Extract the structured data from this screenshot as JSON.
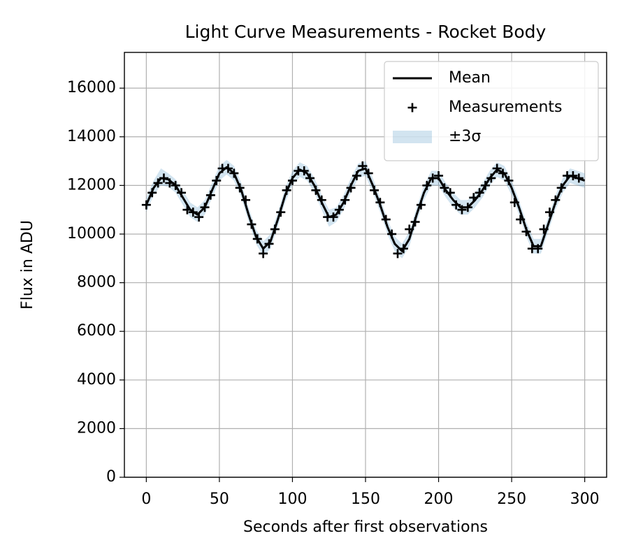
{
  "chart_data": {
    "type": "line",
    "title": "Light Curve Measurements - Rocket Body",
    "xlabel": "Seconds after first observations",
    "ylabel": "Flux in ADU",
    "xlim": [
      -15,
      315
    ],
    "ylim": [
      0,
      17470
    ],
    "xticks": [
      0,
      50,
      100,
      150,
      200,
      250,
      300
    ],
    "yticks": [
      0,
      2000,
      4000,
      6000,
      8000,
      10000,
      12000,
      14000,
      16000
    ],
    "grid": true,
    "legend": "upper right",
    "series": [
      {
        "name": "Mean",
        "type": "line",
        "color": "#000000",
        "x": [
          0,
          5,
          10,
          15,
          20,
          25,
          30,
          35,
          40,
          45,
          50,
          55,
          60,
          65,
          70,
          75,
          80,
          85,
          90,
          95,
          100,
          105,
          110,
          115,
          120,
          125,
          130,
          135,
          140,
          145,
          150,
          155,
          160,
          165,
          170,
          175,
          180,
          185,
          190,
          195,
          200,
          205,
          210,
          215,
          220,
          225,
          230,
          235,
          240,
          245,
          250,
          255,
          260,
          265,
          270,
          275,
          280,
          285,
          290,
          295,
          300
        ],
        "values": [
          11200,
          11900,
          12300,
          12250,
          12000,
          11500,
          11000,
          10800,
          11100,
          11800,
          12500,
          12750,
          12500,
          11800,
          10800,
          9900,
          9400,
          9700,
          10600,
          11600,
          12300,
          12650,
          12500,
          12000,
          11300,
          10700,
          10800,
          11300,
          12000,
          12600,
          12700,
          12000,
          11200,
          10300,
          9600,
          9300,
          9800,
          10800,
          11700,
          12300,
          12300,
          11800,
          11400,
          11100,
          11100,
          11400,
          11800,
          12300,
          12650,
          12500,
          11900,
          11100,
          10200,
          9500,
          9500,
          10400,
          11300,
          12000,
          12400,
          12300,
          12200
        ]
      },
      {
        "name": "Measurements",
        "type": "scatter",
        "color": "#000000",
        "x": [
          0,
          4,
          8,
          12,
          16,
          20,
          24,
          28,
          32,
          36,
          40,
          44,
          48,
          52,
          56,
          60,
          64,
          68,
          72,
          76,
          80,
          84,
          88,
          92,
          96,
          100,
          104,
          108,
          112,
          116,
          120,
          124,
          128,
          132,
          136,
          140,
          144,
          148,
          152,
          156,
          160,
          164,
          168,
          172,
          176,
          180,
          184,
          188,
          192,
          196,
          200,
          204,
          208,
          212,
          216,
          220,
          224,
          228,
          232,
          236,
          240,
          244,
          248,
          252,
          256,
          260,
          264,
          268,
          272,
          276,
          280,
          284,
          288,
          292,
          296
        ],
        "values": [
          11200,
          11700,
          12100,
          12300,
          12100,
          12000,
          11700,
          11000,
          10900,
          10700,
          11100,
          11600,
          12200,
          12700,
          12700,
          12500,
          11900,
          11400,
          10400,
          9800,
          9200,
          9600,
          10200,
          10900,
          11800,
          12200,
          12600,
          12600,
          12300,
          11800,
          11400,
          10700,
          10700,
          11000,
          11400,
          11900,
          12400,
          12800,
          12500,
          11800,
          11300,
          10600,
          10000,
          9200,
          9400,
          10200,
          10500,
          11200,
          12000,
          12300,
          12400,
          11900,
          11700,
          11200,
          11000,
          11100,
          11500,
          11700,
          12000,
          12300,
          12700,
          12500,
          12200,
          11300,
          10600,
          10100,
          9400,
          9400,
          10200,
          10900,
          11400,
          11900,
          12400,
          12400,
          12300
        ]
      },
      {
        "name": "±3σ",
        "type": "band",
        "color": "#1f77b4",
        "alpha": 0.2,
        "x": [
          0,
          5,
          10,
          15,
          20,
          25,
          30,
          35,
          40,
          45,
          50,
          55,
          60,
          65,
          70,
          75,
          80,
          85,
          90,
          95,
          100,
          105,
          110,
          115,
          120,
          125,
          130,
          135,
          140,
          145,
          150,
          155,
          160,
          165,
          170,
          175,
          180,
          185,
          190,
          195,
          200,
          205,
          210,
          215,
          220,
          225,
          230,
          235,
          240,
          245,
          250,
          255,
          260,
          265,
          270,
          275,
          280,
          285,
          290,
          295,
          300
        ],
        "lower": [
          10900,
          11600,
          12000,
          11950,
          11700,
          11200,
          10700,
          10500,
          10800,
          11500,
          12200,
          12450,
          12200,
          11500,
          10500,
          9600,
          9100,
          9400,
          10300,
          11300,
          12000,
          12350,
          12200,
          11700,
          11000,
          10300,
          10500,
          11000,
          11700,
          12300,
          12400,
          11700,
          10900,
          10000,
          9300,
          9000,
          9500,
          10500,
          11400,
          12000,
          12000,
          11500,
          11100,
          10800,
          10800,
          11100,
          11500,
          12000,
          12350,
          12200,
          11600,
          10800,
          9900,
          9200,
          9200,
          10100,
          11000,
          11700,
          12100,
          12000,
          11900
        ],
        "upper": [
          11500,
          12200,
          12700,
          12500,
          12250,
          11800,
          11300,
          11100,
          11400,
          12100,
          12800,
          13050,
          12800,
          12100,
          11100,
          10200,
          9700,
          10000,
          10900,
          11900,
          12600,
          12950,
          12800,
          12300,
          11600,
          11000,
          11100,
          11600,
          12300,
          12900,
          13000,
          12300,
          11500,
          10600,
          9900,
          9600,
          10100,
          11100,
          12000,
          12600,
          12600,
          12100,
          11700,
          11400,
          11400,
          11700,
          12100,
          12600,
          12950,
          12800,
          12200,
          11400,
          10500,
          9800,
          9800,
          10700,
          11600,
          12300,
          12700,
          12600,
          12500
        ]
      }
    ]
  }
}
